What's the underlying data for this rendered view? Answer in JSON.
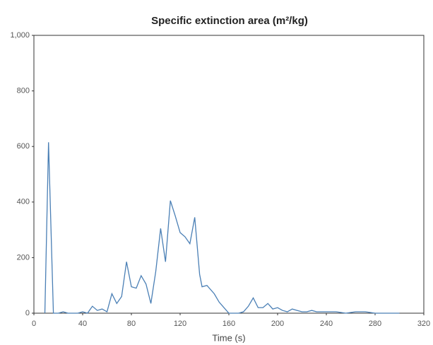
{
  "chart_data": {
    "type": "line",
    "title": "Specific extinction area (m²/kg)",
    "x_label": "Time (s)",
    "x": [
      9,
      12,
      16,
      20,
      24,
      28,
      36,
      40,
      44,
      48,
      52,
      56,
      60,
      64,
      68,
      72,
      76,
      80,
      84,
      88,
      92,
      96,
      100,
      104,
      108,
      112,
      116,
      120,
      124,
      128,
      132,
      136,
      138,
      142,
      148,
      152,
      156,
      160,
      168,
      172,
      176,
      180,
      184,
      188,
      192,
      196,
      200,
      204,
      208,
      212,
      216,
      220,
      224,
      228,
      232,
      240,
      248,
      256,
      264,
      272,
      280,
      288,
      300
    ],
    "series": [
      {
        "name": "Specific extinction area",
        "color": "#4a7fb5",
        "values": [
          0,
          615,
          0,
          0,
          5,
          0,
          0,
          5,
          0,
          25,
          10,
          15,
          5,
          70,
          35,
          60,
          185,
          95,
          90,
          135,
          105,
          35,
          150,
          305,
          185,
          405,
          350,
          290,
          275,
          250,
          345,
          140,
          95,
          100,
          70,
          40,
          20,
          0,
          0,
          5,
          25,
          55,
          20,
          20,
          35,
          15,
          20,
          10,
          5,
          15,
          10,
          5,
          5,
          10,
          5,
          5,
          5,
          0,
          5,
          5,
          0,
          0,
          0
        ]
      }
    ],
    "xlim": [
      0,
      320
    ],
    "xticks": [
      0,
      40,
      80,
      120,
      160,
      200,
      240,
      280,
      320
    ],
    "ylim": [
      0,
      1000
    ],
    "yticks": [
      0,
      200,
      400,
      600,
      800,
      {
        "value": 1000,
        "label": "1,000"
      }
    ],
    "grid": false
  }
}
